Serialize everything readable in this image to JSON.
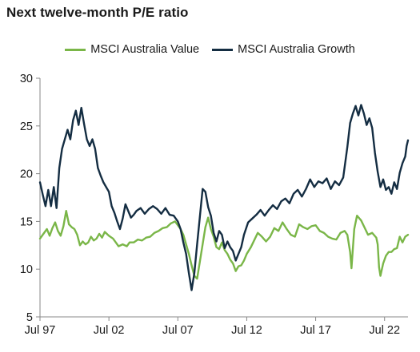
{
  "chart_data": {
    "type": "line",
    "title": "Next twelve-month P/E ratio",
    "ylim": [
      5,
      30
    ],
    "yticks": [
      5,
      10,
      15,
      20,
      25,
      30
    ],
    "xlim": [
      1997.5,
      2024.2
    ],
    "xticks": [
      {
        "label": "Jul 97",
        "value": 1997.5
      },
      {
        "label": "Jul 02",
        "value": 2002.5
      },
      {
        "label": "Jul 07",
        "value": 2007.5
      },
      {
        "label": "Jul 12",
        "value": 2012.5
      },
      {
        "label": "Jul 17",
        "value": 2017.5
      },
      {
        "label": "Jul 22",
        "value": 2022.5
      }
    ],
    "legend_position": "top-center",
    "grid": false,
    "series": [
      {
        "name": "MSCI Australia Value",
        "color": "#7ab648",
        "points": [
          [
            1997.5,
            13.2
          ],
          [
            1997.8,
            13.8
          ],
          [
            1998.0,
            14.2
          ],
          [
            1998.2,
            13.5
          ],
          [
            1998.4,
            14.3
          ],
          [
            1998.6,
            14.9
          ],
          [
            1998.8,
            14.0
          ],
          [
            1999.0,
            13.5
          ],
          [
            1999.2,
            14.5
          ],
          [
            1999.4,
            16.1
          ],
          [
            1999.6,
            14.7
          ],
          [
            1999.8,
            14.4
          ],
          [
            2000.0,
            14.2
          ],
          [
            2000.2,
            13.6
          ],
          [
            2000.4,
            12.5
          ],
          [
            2000.6,
            12.9
          ],
          [
            2000.8,
            12.6
          ],
          [
            2001.0,
            12.8
          ],
          [
            2001.2,
            13.4
          ],
          [
            2001.4,
            13.0
          ],
          [
            2001.6,
            13.2
          ],
          [
            2001.8,
            13.7
          ],
          [
            2002.0,
            13.3
          ],
          [
            2002.2,
            13.9
          ],
          [
            2002.5,
            13.5
          ],
          [
            2002.8,
            13.2
          ],
          [
            2003.0,
            12.8
          ],
          [
            2003.2,
            12.4
          ],
          [
            2003.5,
            12.6
          ],
          [
            2003.8,
            12.4
          ],
          [
            2004.0,
            12.8
          ],
          [
            2004.3,
            12.8
          ],
          [
            2004.6,
            13.1
          ],
          [
            2004.9,
            13.0
          ],
          [
            2005.2,
            13.3
          ],
          [
            2005.5,
            13.4
          ],
          [
            2005.8,
            13.8
          ],
          [
            2006.1,
            14.0
          ],
          [
            2006.4,
            14.3
          ],
          [
            2006.7,
            14.4
          ],
          [
            2007.0,
            14.8
          ],
          [
            2007.3,
            15.0
          ],
          [
            2007.5,
            14.6
          ],
          [
            2007.7,
            14.2
          ],
          [
            2007.9,
            13.6
          ],
          [
            2008.1,
            12.6
          ],
          [
            2008.3,
            11.6
          ],
          [
            2008.5,
            10.4
          ],
          [
            2008.7,
            9.3
          ],
          [
            2008.9,
            9.0
          ],
          [
            2009.1,
            10.8
          ],
          [
            2009.3,
            12.6
          ],
          [
            2009.5,
            14.4
          ],
          [
            2009.7,
            15.4
          ],
          [
            2009.9,
            14.2
          ],
          [
            2010.1,
            13.4
          ],
          [
            2010.3,
            12.3
          ],
          [
            2010.5,
            12.1
          ],
          [
            2010.7,
            12.8
          ],
          [
            2010.9,
            12.0
          ],
          [
            2011.1,
            11.6
          ],
          [
            2011.3,
            11.0
          ],
          [
            2011.5,
            10.6
          ],
          [
            2011.7,
            9.8
          ],
          [
            2011.9,
            10.3
          ],
          [
            2012.1,
            10.4
          ],
          [
            2012.3,
            10.9
          ],
          [
            2012.5,
            11.6
          ],
          [
            2012.8,
            12.3
          ],
          [
            2013.1,
            13.2
          ],
          [
            2013.3,
            13.8
          ],
          [
            2013.6,
            13.4
          ],
          [
            2013.9,
            12.9
          ],
          [
            2014.2,
            13.4
          ],
          [
            2014.5,
            14.3
          ],
          [
            2014.8,
            14.0
          ],
          [
            2015.1,
            14.9
          ],
          [
            2015.4,
            14.2
          ],
          [
            2015.7,
            13.6
          ],
          [
            2016.0,
            13.4
          ],
          [
            2016.3,
            14.7
          ],
          [
            2016.6,
            14.4
          ],
          [
            2016.9,
            14.2
          ],
          [
            2017.2,
            14.5
          ],
          [
            2017.5,
            14.6
          ],
          [
            2017.8,
            14.0
          ],
          [
            2018.1,
            13.8
          ],
          [
            2018.4,
            13.4
          ],
          [
            2018.7,
            13.2
          ],
          [
            2019.0,
            13.1
          ],
          [
            2019.3,
            13.8
          ],
          [
            2019.6,
            14.0
          ],
          [
            2019.8,
            13.6
          ],
          [
            2020.0,
            11.8
          ],
          [
            2020.1,
            10.1
          ],
          [
            2020.3,
            14.2
          ],
          [
            2020.5,
            15.6
          ],
          [
            2020.8,
            15.1
          ],
          [
            2021.0,
            14.5
          ],
          [
            2021.3,
            13.6
          ],
          [
            2021.6,
            13.8
          ],
          [
            2021.9,
            13.3
          ],
          [
            2022.0,
            12.6
          ],
          [
            2022.1,
            10.2
          ],
          [
            2022.2,
            9.3
          ],
          [
            2022.4,
            10.6
          ],
          [
            2022.6,
            11.4
          ],
          [
            2022.8,
            11.8
          ],
          [
            2023.0,
            11.8
          ],
          [
            2023.2,
            12.1
          ],
          [
            2023.4,
            12.2
          ],
          [
            2023.6,
            13.4
          ],
          [
            2023.8,
            12.8
          ],
          [
            2024.0,
            13.4
          ],
          [
            2024.2,
            13.6
          ]
        ]
      },
      {
        "name": "MSCI Australia Growth",
        "color": "#142d42",
        "points": [
          [
            1997.5,
            19.1
          ],
          [
            1997.7,
            17.8
          ],
          [
            1997.9,
            16.6
          ],
          [
            1998.1,
            18.3
          ],
          [
            1998.3,
            16.6
          ],
          [
            1998.5,
            18.6
          ],
          [
            1998.7,
            16.4
          ],
          [
            1998.9,
            20.6
          ],
          [
            1999.1,
            22.6
          ],
          [
            1999.3,
            23.6
          ],
          [
            1999.5,
            24.6
          ],
          [
            1999.7,
            23.6
          ],
          [
            1999.9,
            25.6
          ],
          [
            2000.1,
            26.6
          ],
          [
            2000.3,
            25.1
          ],
          [
            2000.5,
            26.9
          ],
          [
            2000.7,
            25.2
          ],
          [
            2000.9,
            23.6
          ],
          [
            2001.1,
            22.9
          ],
          [
            2001.3,
            23.6
          ],
          [
            2001.5,
            22.6
          ],
          [
            2001.7,
            20.6
          ],
          [
            2001.9,
            19.8
          ],
          [
            2002.1,
            19.1
          ],
          [
            2002.3,
            18.6
          ],
          [
            2002.5,
            18.1
          ],
          [
            2002.7,
            16.6
          ],
          [
            2002.9,
            15.9
          ],
          [
            2003.1,
            15.0
          ],
          [
            2003.3,
            14.2
          ],
          [
            2003.5,
            15.3
          ],
          [
            2003.7,
            16.8
          ],
          [
            2003.9,
            16.1
          ],
          [
            2004.1,
            15.4
          ],
          [
            2004.3,
            15.7
          ],
          [
            2004.5,
            16.1
          ],
          [
            2004.8,
            16.4
          ],
          [
            2005.1,
            15.8
          ],
          [
            2005.4,
            16.3
          ],
          [
            2005.7,
            16.6
          ],
          [
            2006.0,
            16.3
          ],
          [
            2006.3,
            15.8
          ],
          [
            2006.6,
            16.4
          ],
          [
            2006.9,
            15.7
          ],
          [
            2007.2,
            15.6
          ],
          [
            2007.5,
            15.0
          ],
          [
            2007.7,
            14.2
          ],
          [
            2007.9,
            12.8
          ],
          [
            2008.1,
            11.6
          ],
          [
            2008.3,
            9.6
          ],
          [
            2008.5,
            7.8
          ],
          [
            2008.7,
            9.6
          ],
          [
            2008.9,
            12.6
          ],
          [
            2009.1,
            15.5
          ],
          [
            2009.3,
            18.4
          ],
          [
            2009.5,
            18.1
          ],
          [
            2009.7,
            16.5
          ],
          [
            2009.9,
            15.6
          ],
          [
            2010.1,
            13.8
          ],
          [
            2010.3,
            12.9
          ],
          [
            2010.5,
            14.0
          ],
          [
            2010.7,
            13.6
          ],
          [
            2010.9,
            12.2
          ],
          [
            2011.1,
            12.9
          ],
          [
            2011.3,
            12.3
          ],
          [
            2011.5,
            11.9
          ],
          [
            2011.7,
            10.9
          ],
          [
            2011.9,
            11.6
          ],
          [
            2012.1,
            12.3
          ],
          [
            2012.3,
            13.6
          ],
          [
            2012.6,
            14.9
          ],
          [
            2012.9,
            15.3
          ],
          [
            2013.2,
            15.7
          ],
          [
            2013.5,
            16.2
          ],
          [
            2013.8,
            15.6
          ],
          [
            2014.1,
            16.2
          ],
          [
            2014.4,
            16.7
          ],
          [
            2014.7,
            16.3
          ],
          [
            2015.0,
            17.1
          ],
          [
            2015.3,
            17.4
          ],
          [
            2015.6,
            16.9
          ],
          [
            2015.9,
            17.9
          ],
          [
            2016.2,
            18.3
          ],
          [
            2016.5,
            17.6
          ],
          [
            2016.8,
            18.4
          ],
          [
            2017.1,
            19.4
          ],
          [
            2017.4,
            18.6
          ],
          [
            2017.7,
            19.2
          ],
          [
            2018.0,
            19.0
          ],
          [
            2018.3,
            19.5
          ],
          [
            2018.6,
            18.4
          ],
          [
            2018.9,
            19.2
          ],
          [
            2019.2,
            18.8
          ],
          [
            2019.5,
            19.6
          ],
          [
            2019.8,
            22.8
          ],
          [
            2020.0,
            25.3
          ],
          [
            2020.2,
            26.3
          ],
          [
            2020.4,
            27.1
          ],
          [
            2020.6,
            26.1
          ],
          [
            2020.8,
            27.2
          ],
          [
            2021.0,
            26.3
          ],
          [
            2021.2,
            25.1
          ],
          [
            2021.4,
            25.8
          ],
          [
            2021.6,
            24.8
          ],
          [
            2021.8,
            22.2
          ],
          [
            2022.0,
            20.2
          ],
          [
            2022.2,
            18.6
          ],
          [
            2022.4,
            19.4
          ],
          [
            2022.6,
            18.3
          ],
          [
            2022.8,
            18.6
          ],
          [
            2023.0,
            17.9
          ],
          [
            2023.2,
            19.1
          ],
          [
            2023.4,
            18.4
          ],
          [
            2023.6,
            20.1
          ],
          [
            2023.8,
            21.1
          ],
          [
            2024.0,
            21.8
          ],
          [
            2024.1,
            22.9
          ],
          [
            2024.2,
            23.5
          ]
        ]
      }
    ]
  }
}
